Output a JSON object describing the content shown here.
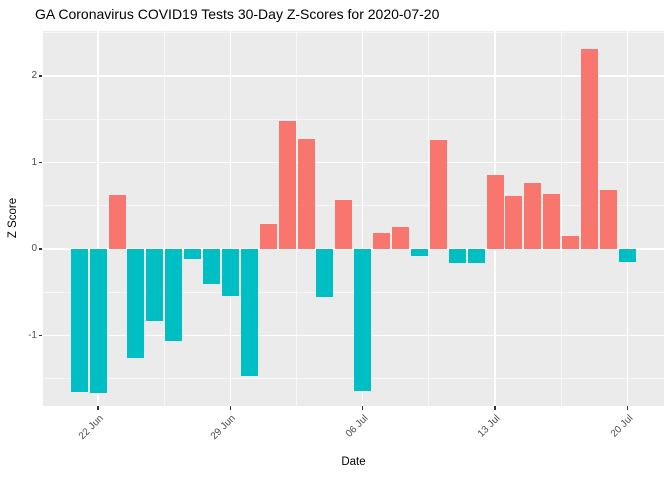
{
  "colors": {
    "positive_bar": "#F8766D",
    "negative_bar": "#00BFC4",
    "panel_background": "#EBEBEB",
    "gridline": "#FFFFFF",
    "axis_text": "#4D4D4D",
    "title_text": "#000000",
    "tick_mark": "#333333"
  },
  "chart_data": {
    "type": "bar",
    "title": "GA Coronavirus COVID19 Tests 30-Day Z-Scores for 2020-07-20",
    "xlabel": "Date",
    "ylabel": "Z Score",
    "categories": [
      "21 Jun",
      "22 Jun",
      "23 Jun",
      "24 Jun",
      "25 Jun",
      "26 Jun",
      "27 Jun",
      "28 Jun",
      "29 Jun",
      "30 Jun",
      "01 Jul",
      "02 Jul",
      "03 Jul",
      "04 Jul",
      "05 Jul",
      "06 Jul",
      "07 Jul",
      "08 Jul",
      "09 Jul",
      "10 Jul",
      "11 Jul",
      "12 Jul",
      "13 Jul",
      "14 Jul",
      "15 Jul",
      "16 Jul",
      "17 Jul",
      "18 Jul",
      "19 Jul",
      "20 Jul"
    ],
    "values": [
      -1.65,
      -1.66,
      0.63,
      -1.26,
      -0.83,
      -1.06,
      -0.12,
      -0.4,
      -0.54,
      -1.47,
      0.29,
      1.48,
      1.27,
      -0.56,
      0.57,
      -1.64,
      0.18,
      0.25,
      -0.08,
      1.26,
      -0.16,
      -0.16,
      0.86,
      0.61,
      0.76,
      0.64,
      0.15,
      2.31,
      0.68,
      -0.15
    ],
    "x_major_tick_labels": [
      "22 Jun",
      "29 Jun",
      "06 Jul",
      "13 Jul",
      "20 Jul"
    ],
    "y_major_ticks": [
      -1,
      0,
      1,
      2
    ],
    "y_minor_ticks": [
      -1.5,
      -0.5,
      0.5,
      1.5,
      2.5
    ],
    "ylim": [
      -1.82,
      2.52
    ],
    "grid": true,
    "legend": "none"
  }
}
